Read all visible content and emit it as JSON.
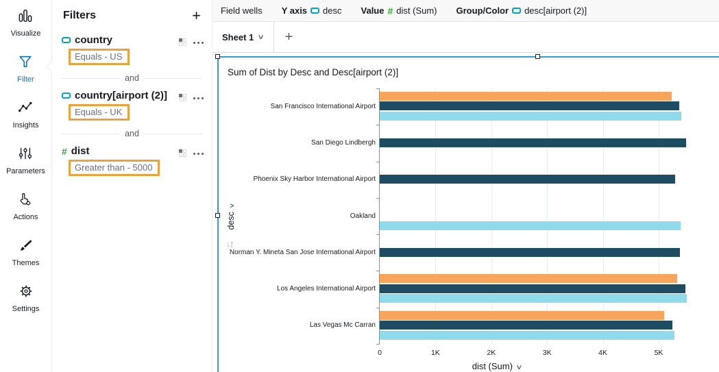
{
  "nav": {
    "items": [
      {
        "label": "Visualize",
        "icon": "bar-chart-icon",
        "active": false
      },
      {
        "label": "Filter",
        "icon": "funnel-icon",
        "active": true
      },
      {
        "label": "Insights",
        "icon": "insights-line-icon",
        "active": false
      },
      {
        "label": "Parameters",
        "icon": "sliders-icon",
        "active": false
      },
      {
        "label": "Actions",
        "icon": "pointer-gear-icon",
        "active": false
      },
      {
        "label": "Themes",
        "icon": "paintbrush-icon",
        "active": false
      },
      {
        "label": "Settings",
        "icon": "gear-icon",
        "active": false
      }
    ]
  },
  "filters_panel": {
    "title": "Filters",
    "add_label": "+",
    "connector": "and",
    "items": [
      {
        "name": "country",
        "type": "dimension",
        "condition": "Equals - US"
      },
      {
        "name": "country[airport (2)]",
        "type": "dimension",
        "condition": "Equals - UK"
      },
      {
        "name": "dist",
        "type": "measure",
        "condition": "Greater than - 5000"
      }
    ]
  },
  "field_wells": {
    "label": "Field wells",
    "wells": [
      {
        "label": "Y axis",
        "type": "dimension",
        "field": "desc"
      },
      {
        "label": "Value",
        "type": "measure",
        "field": "dist (Sum)"
      },
      {
        "label": "Group/Color",
        "type": "dimension",
        "field": "desc[airport (2)]"
      }
    ]
  },
  "sheet_bar": {
    "tabs": [
      {
        "label": "Sheet 1"
      }
    ],
    "add_label": "+"
  },
  "visual": {
    "title": "Sum of Dist by Desc and Desc[airport (2)]",
    "y_axis_field": "desc",
    "x_axis_field": "dist (Sum)",
    "measure_icon": "hash-icon"
  },
  "chart_data": {
    "type": "bar",
    "orientation": "horizontal",
    "title": "Sum of Dist by Desc and Desc[airport (2)]",
    "xlabel": "dist (Sum)",
    "ylabel": "desc",
    "legend": "hidden",
    "grid": true,
    "xlim": [
      0,
      6100
    ],
    "x_ticks": [
      {
        "label": "0",
        "value": 0
      },
      {
        "label": "1K",
        "value": 1000
      },
      {
        "label": "2K",
        "value": 2000
      },
      {
        "label": "3K",
        "value": 3000
      },
      {
        "label": "4K",
        "value": 4000
      },
      {
        "label": "5K",
        "value": 5000
      }
    ],
    "categories": [
      "San Francisco International Airport",
      "San Diego Lindbergh",
      "Phoenix Sky Harbor International Airport",
      "Oakland",
      "Norman Y. Mineta San Jose International Airport",
      "Los Angeles International Airport",
      "Las Vegas Mc Carran"
    ],
    "series": [
      {
        "name": "orange",
        "color": "#F9A45B",
        "values": [
          5230,
          null,
          null,
          null,
          null,
          5330,
          5100
        ]
      },
      {
        "name": "dark-blue",
        "color": "#1E4D63",
        "values": [
          5370,
          5490,
          5290,
          null,
          5380,
          5480,
          5250
        ]
      },
      {
        "name": "light-blue",
        "color": "#8FDBEC",
        "values": [
          5410,
          null,
          null,
          5390,
          null,
          5500,
          5280
        ]
      }
    ]
  },
  "colors": {
    "accent_blue": "#0073BB",
    "selection_blue": "#2EA0D8",
    "highlight_amber": "#E9A23C",
    "dimension_cyan": "#00A1C9",
    "measure_green": "#2EA836"
  }
}
